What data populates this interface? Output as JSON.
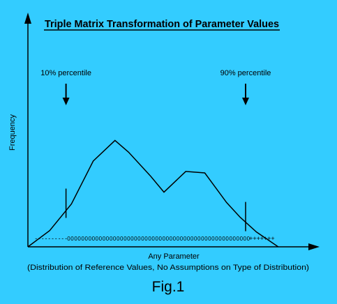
{
  "chart_data": {
    "type": "line",
    "title": "Triple Matrix Transformation of Parameter Values",
    "xlabel": "Any Parameter",
    "xlabel_note": "(Distribution of Reference Values, No Assumptions on Type of Distribution)",
    "ylabel": "Frequency",
    "caption": "Fig.1",
    "axes": {
      "xlim": [
        0,
        100
      ],
      "ylim": [
        0,
        100
      ],
      "grid": false,
      "ticks": false
    },
    "series": [
      {
        "x": [
          0,
          8,
          16,
          24,
          32,
          37,
          45,
          50,
          58,
          65,
          73,
          78,
          84,
          92
        ],
        "y": [
          0,
          11,
          29,
          58,
          72,
          64,
          48,
          37,
          51,
          50,
          30,
          20,
          10,
          0
        ]
      }
    ],
    "percentile_markers": [
      {
        "label": "10% percentile",
        "x": 14,
        "y": 29
      },
      {
        "label": "90% percentile",
        "x": 80,
        "y": 20
      }
    ],
    "value_strip": {
      "segments": [
        {
          "symbol": "-",
          "from": 3,
          "to": 14
        },
        {
          "symbol": "0",
          "from": 15,
          "to": 81
        },
        {
          "symbol": "+",
          "from": 82,
          "to": 90
        }
      ]
    }
  }
}
